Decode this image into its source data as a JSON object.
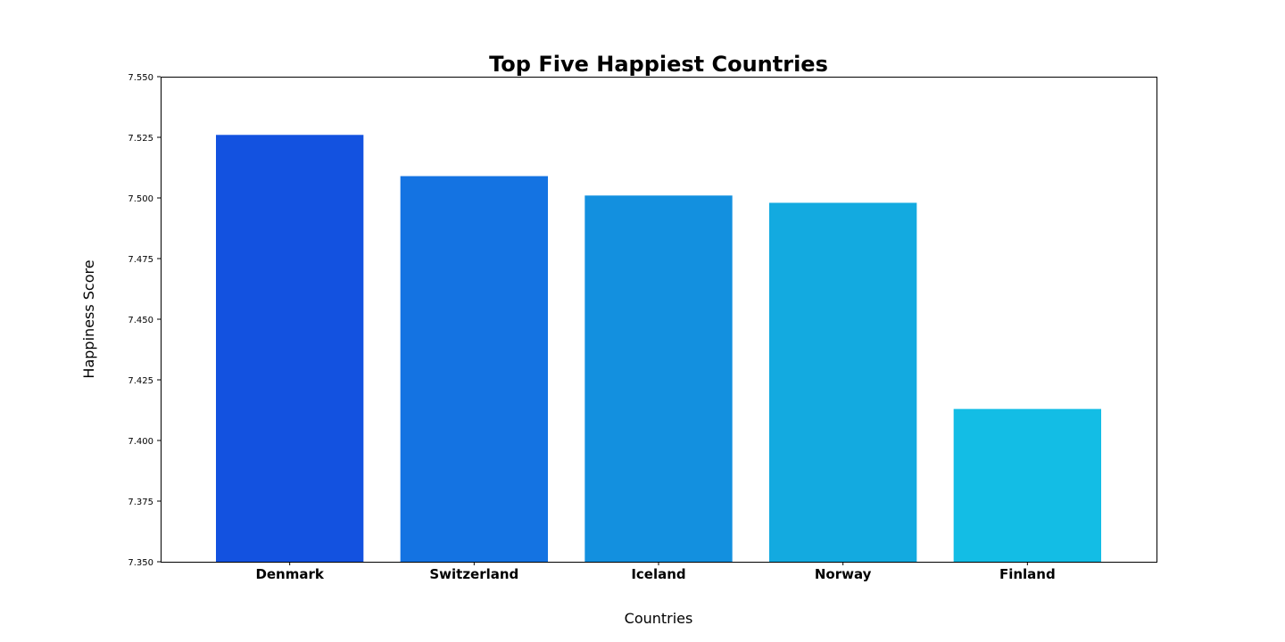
{
  "chart_data": {
    "type": "bar",
    "title": "Top Five Happiest Countries",
    "xlabel": "Countries",
    "ylabel": "Happiness Score",
    "categories": [
      "Denmark",
      "Switzerland",
      "Iceland",
      "Norway",
      "Finland"
    ],
    "values": [
      7.526,
      7.509,
      7.501,
      7.498,
      7.413
    ],
    "colors": [
      "#1352e0",
      "#1473e2",
      "#1390df",
      "#13aae0",
      "#13bde5"
    ],
    "ylim": [
      7.35,
      7.55
    ],
    "yticks": [
      "7.350",
      "7.375",
      "7.400",
      "7.425",
      "7.450",
      "7.475",
      "7.500",
      "7.525",
      "7.550"
    ],
    "grid": false,
    "legend": "none"
  }
}
